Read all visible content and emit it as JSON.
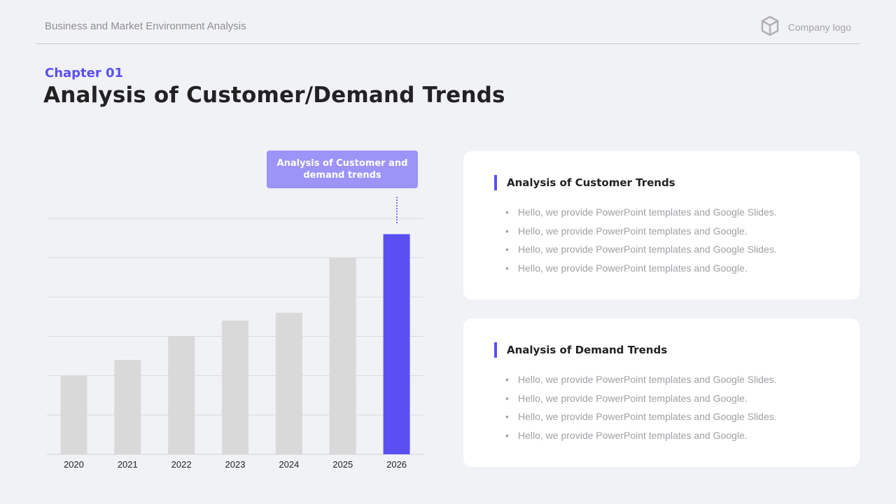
{
  "header": {
    "title": "Business and Market Environment Analysis",
    "logo_text": "Company logo",
    "logo_icon": "cube-icon"
  },
  "chapter": "Chapter 01",
  "title": "Analysis of Customer/Demand Trends",
  "callout": "Analysis of Customer and demand trends",
  "chart_data": {
    "type": "bar",
    "categories": [
      "2020",
      "2021",
      "2022",
      "2023",
      "2024",
      "2025",
      "2026"
    ],
    "values": [
      2.0,
      2.4,
      3.0,
      3.4,
      3.6,
      5.0,
      5.6
    ],
    "ylim": [
      0,
      6
    ],
    "grid": true,
    "highlight_index": 6,
    "colors": {
      "bar": "#d9d9d9",
      "highlight": "#5b4ff2",
      "grid": "#d8d9de"
    }
  },
  "cards": [
    {
      "heading": "Analysis of Customer Trends",
      "items": [
        "Hello, we provide PowerPoint templates and Google Slides.",
        "Hello, we provide PowerPoint templates and Google.",
        "Hello, we provide PowerPoint templates and Google Slides.",
        "Hello, we provide PowerPoint templates and Google."
      ]
    },
    {
      "heading": "Analysis of Demand Trends",
      "items": [
        "Hello, we provide PowerPoint templates and Google Slides.",
        "Hello, we provide PowerPoint templates and Google.",
        "Hello, we provide PowerPoint templates and Google Slides.",
        "Hello, we provide PowerPoint templates and Google."
      ]
    }
  ]
}
